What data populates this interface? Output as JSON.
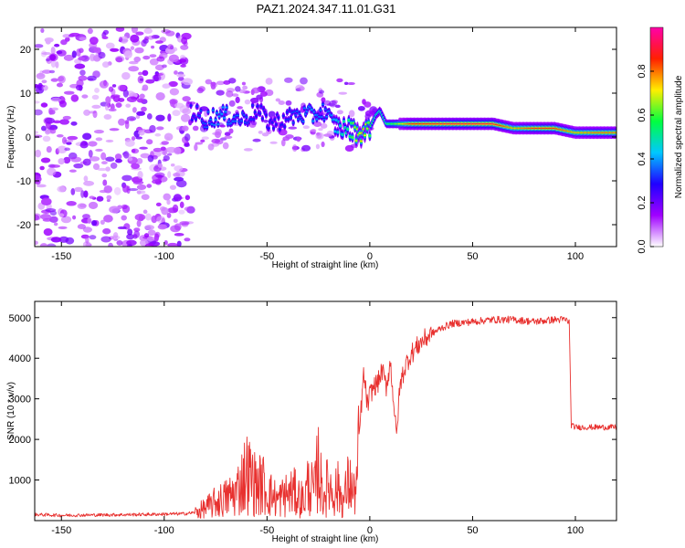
{
  "title": "PAZ1.2024.347.11.01.G31",
  "chart_data": [
    {
      "type": "heatmap",
      "xlabel": "Height of straight line (km)",
      "ylabel": "Frequency (Hz)",
      "xlim": [
        -163,
        120
      ],
      "ylim": [
        -25,
        25
      ],
      "x_ticks": [
        -150,
        -100,
        -50,
        0,
        50,
        100
      ],
      "y_ticks": [
        -20,
        -10,
        0,
        10,
        20
      ],
      "colorbar": {
        "label": "Normalized spectral amplitude",
        "range": [
          0,
          1
        ],
        "ticks": [
          0.0,
          0.2,
          0.4,
          0.6,
          0.8
        ],
        "tick_labels": [
          "0.0",
          "0.2",
          "0.4",
          "0.6",
          "0.8"
        ],
        "colormap": [
          "#ffffff",
          "#a000ff",
          "#2000ff",
          "#00c8ff",
          "#00ff40",
          "#ffee00",
          "#ff2000",
          "#ff00aa"
        ]
      },
      "ridge": {
        "x": [
          -87,
          -80,
          -72,
          -62,
          -55,
          -48,
          -42,
          -35,
          -28,
          -22,
          -18,
          -14,
          -10,
          -6,
          -3,
          0,
          3,
          5,
          8,
          12,
          20,
          40,
          60,
          70,
          80,
          90,
          100,
          110,
          120
        ],
        "freq": [
          6,
          4,
          5,
          4,
          6,
          3,
          4,
          5,
          5,
          6,
          3,
          2,
          2,
          1,
          1,
          2,
          5,
          6,
          3,
          3,
          3,
          3,
          3,
          2,
          2,
          2,
          1,
          1,
          1
        ],
        "amp": [
          0.3,
          0.35,
          0.4,
          0.35,
          0.3,
          0.3,
          0.3,
          0.35,
          0.4,
          0.35,
          0.4,
          0.5,
          0.55,
          0.7,
          0.75,
          0.6,
          0.5,
          0.5,
          0.55,
          0.6,
          0.85,
          0.9,
          0.9,
          0.75,
          0.85,
          0.85,
          0.75,
          0.8,
          0.8
        ]
      }
    },
    {
      "type": "line",
      "xlabel": "Height of straight line (km)",
      "ylabel": "SNR (10 * v/v)",
      "xlim": [
        -163,
        120
      ],
      "ylim": [
        0,
        5400
      ],
      "x_ticks": [
        -150,
        -100,
        -50,
        0,
        50,
        100
      ],
      "y_ticks": [
        1000,
        2000,
        3000,
        4000,
        5000
      ],
      "color": "#e8312f",
      "series": [
        {
          "x": [
            -163,
            -150,
            -130,
            -110,
            -100,
            -90,
            -85,
            -80,
            -75,
            -70,
            -65,
            -60,
            -57,
            -55,
            -52,
            -50,
            -47,
            -45,
            -42,
            -40,
            -37,
            -35,
            -32,
            -30,
            -27,
            -25,
            -23,
            -20,
            -18,
            -15,
            -13,
            -10,
            -8,
            -6,
            -5,
            -3,
            -1,
            0,
            2,
            4,
            6,
            8,
            10,
            12,
            13,
            14,
            15,
            16,
            18,
            20,
            25,
            30,
            35,
            40,
            50,
            60,
            70,
            80,
            90,
            95,
            97,
            98,
            100,
            110,
            120
          ],
          "y": [
            150,
            130,
            140,
            150,
            160,
            170,
            200,
            300,
            450,
            550,
            700,
            1200,
            1000,
            850,
            900,
            700,
            600,
            500,
            600,
            650,
            700,
            600,
            500,
            900,
            700,
            1400,
            600,
            900,
            700,
            800,
            450,
            1000,
            600,
            1000,
            2200,
            3600,
            2800,
            3100,
            3300,
            3400,
            3700,
            3300,
            3900,
            2700,
            2000,
            2900,
            3400,
            3600,
            3900,
            4100,
            4400,
            4600,
            4750,
            4850,
            4900,
            4950,
            4950,
            4900,
            4950,
            4950,
            4900,
            2350,
            2300,
            2300,
            2300
          ]
        }
      ]
    }
  ]
}
